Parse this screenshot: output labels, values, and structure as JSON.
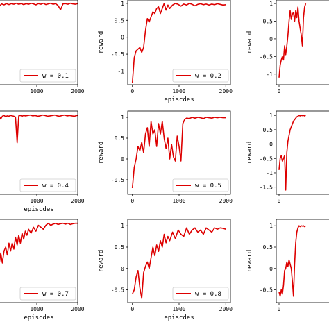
{
  "figure": {
    "line_color": "#dd0000",
    "xlabel": "episcdes",
    "ylabel": "reward"
  },
  "chart_data": [
    {
      "type": "line",
      "legend": "w = 0.1",
      "xlabel": "",
      "ylabel": "",
      "xlim": [
        0,
        2000
      ],
      "ylim": [
        -1.5,
        1.1
      ],
      "xticks": [
        1000,
        2000
      ],
      "yticks": [],
      "x": [
        0,
        40,
        80,
        140,
        200,
        260,
        320,
        380,
        440,
        500,
        560,
        620,
        680,
        740,
        800,
        860,
        920,
        980,
        1040,
        1100,
        1160,
        1220,
        1280,
        1340,
        1400,
        1460,
        1520,
        1580,
        1640,
        1700,
        1760,
        1820,
        1880,
        1940,
        2000
      ],
      "y": [
        0.6,
        0.75,
        0.9,
        0.98,
        0.95,
        0.99,
        0.96,
        0.99,
        0.97,
        1.0,
        0.97,
        0.99,
        0.96,
        0.99,
        0.97,
        1.0,
        0.98,
        0.95,
        0.99,
        0.97,
        1.0,
        0.96,
        0.98,
        1.0,
        0.97,
        0.99,
        0.93,
        0.8,
        0.98,
        0.99,
        0.97,
        1.0,
        0.98,
        0.97,
        0.99
      ]
    },
    {
      "type": "line",
      "legend": "w = 0.2",
      "xlabel": "episcdes",
      "ylabel": "reward",
      "xlim": [
        -100,
        2100
      ],
      "ylim": [
        -1.4,
        1.1
      ],
      "xticks": [
        0,
        1000,
        2000
      ],
      "yticks": [
        -1.0,
        -0.5,
        0.0,
        0.5,
        1.0
      ],
      "x": [
        0,
        40,
        80,
        120,
        160,
        200,
        240,
        280,
        320,
        360,
        400,
        440,
        480,
        520,
        560,
        600,
        640,
        680,
        720,
        760,
        800,
        860,
        920,
        980,
        1040,
        1100,
        1160,
        1220,
        1280,
        1340,
        1400,
        1460,
        1520,
        1580,
        1640,
        1700,
        1760,
        1820,
        1880,
        1940,
        2000
      ],
      "y": [
        -1.35,
        -0.6,
        -0.4,
        -0.35,
        -0.3,
        -0.45,
        -0.3,
        0.2,
        0.55,
        0.45,
        0.6,
        0.75,
        0.7,
        0.85,
        0.9,
        0.7,
        0.85,
        1.0,
        0.8,
        0.95,
        0.85,
        0.95,
        1.0,
        0.97,
        0.92,
        0.98,
        0.95,
        1.0,
        0.97,
        0.93,
        0.97,
        0.99,
        0.96,
        0.98,
        0.95,
        0.98,
        0.96,
        0.99,
        0.97,
        0.95,
        0.96
      ]
    },
    {
      "type": "line",
      "legend": "",
      "xlabel": "",
      "ylabel": "reward",
      "xlim": [
        -100,
        2100
      ],
      "ylim": [
        -1.3,
        1.1
      ],
      "xticks": [
        0
      ],
      "yticks": [
        -1.0,
        -0.5,
        0.0,
        0.5,
        1.0
      ],
      "x": [
        0,
        40,
        80,
        120,
        160,
        200,
        240,
        280,
        320,
        360,
        400,
        440,
        480,
        520,
        560,
        600,
        640,
        680,
        720,
        760,
        800,
        840,
        880,
        920,
        960
      ],
      "y": [
        -1.1,
        -0.75,
        -0.6,
        -0.5,
        -0.6,
        -0.2,
        -0.45,
        -0.2,
        0.1,
        0.5,
        0.8,
        0.55,
        0.7,
        0.75,
        0.5,
        0.8,
        0.6,
        0.9,
        0.5,
        0.3,
        0.1,
        -0.2,
        0.6,
        0.9,
        1.0
      ]
    },
    {
      "type": "line",
      "legend": "w = 0.4",
      "xlabel": "episcdes",
      "ylabel": "",
      "xlim": [
        0,
        2000
      ],
      "ylim": [
        -1.0,
        1.1
      ],
      "xticks": [
        1000,
        2000
      ],
      "yticks": [],
      "x": [
        0,
        40,
        80,
        120,
        160,
        200,
        240,
        280,
        320,
        360,
        400,
        440,
        480,
        520,
        560,
        600,
        640,
        680,
        720,
        780,
        840,
        900,
        960,
        1020,
        1080,
        1140,
        1200,
        1260,
        1320,
        1380,
        1440,
        1500,
        1560,
        1620,
        1680,
        1740,
        1800,
        1860,
        1920,
        1980,
        2000
      ],
      "y": [
        0.95,
        0.8,
        0.98,
        0.9,
        0.97,
        0.99,
        0.96,
        0.98,
        0.97,
        0.99,
        0.98,
        0.97,
        0.95,
        0.3,
        0.98,
        0.99,
        0.97,
        0.99,
        0.98,
        0.99,
        1.0,
        0.98,
        0.99,
        0.97,
        0.98,
        1.0,
        0.99,
        0.97,
        0.98,
        0.99,
        1.0,
        0.98,
        0.97,
        0.99,
        1.0,
        0.98,
        0.99,
        0.98,
        0.97,
        0.99,
        0.99
      ]
    },
    {
      "type": "line",
      "legend": "w = 0.5",
      "xlabel": "",
      "ylabel": "reward",
      "xlim": [
        -100,
        2100
      ],
      "ylim": [
        -0.85,
        1.15
      ],
      "xticks": [
        0,
        1000,
        2000
      ],
      "yticks": [
        -0.5,
        0.0,
        0.5,
        1.0
      ],
      "x": [
        0,
        40,
        80,
        120,
        160,
        200,
        240,
        280,
        320,
        360,
        400,
        440,
        480,
        520,
        560,
        600,
        640,
        680,
        720,
        760,
        800,
        840,
        880,
        920,
        960,
        1000,
        1040,
        1080,
        1120,
        1160,
        1220,
        1280,
        1340,
        1400,
        1460,
        1520,
        1580,
        1640,
        1700,
        1760,
        1820,
        1880,
        1940,
        2000
      ],
      "y": [
        -0.7,
        -0.2,
        0.0,
        0.3,
        0.2,
        0.4,
        0.15,
        0.6,
        0.75,
        0.3,
        0.9,
        0.6,
        0.7,
        0.3,
        0.85,
        0.6,
        0.9,
        0.5,
        0.25,
        0.5,
        0.0,
        0.35,
        0.05,
        -0.05,
        0.55,
        0.3,
        -0.05,
        0.85,
        0.95,
        0.98,
        0.97,
        1.0,
        0.98,
        1.0,
        0.99,
        0.97,
        1.0,
        0.99,
        0.98,
        1.0,
        0.99,
        1.0,
        0.99,
        0.99
      ]
    },
    {
      "type": "line",
      "legend": "",
      "xlabel": "",
      "ylabel": "reward",
      "xlim": [
        -100,
        2100
      ],
      "ylim": [
        -1.75,
        1.15
      ],
      "xticks": [
        0
      ],
      "yticks": [
        -1.5,
        -1.0,
        -0.5,
        0.0,
        0.5,
        1.0
      ],
      "x": [
        0,
        40,
        80,
        120,
        160,
        200,
        240,
        280,
        320,
        360,
        400,
        440,
        480,
        520,
        560,
        600,
        640,
        680,
        720,
        760,
        800,
        840,
        880,
        920,
        960
      ],
      "y": [
        -0.9,
        -0.5,
        -0.4,
        -0.6,
        -0.5,
        -0.4,
        -1.6,
        -0.3,
        0.1,
        0.3,
        0.5,
        0.6,
        0.7,
        0.8,
        0.85,
        0.9,
        0.95,
        0.97,
        1.0,
        0.98,
        1.0,
        0.99,
        1.0,
        0.98,
        1.0
      ]
    },
    {
      "type": "line",
      "legend": "w = 0.7",
      "xlabel": "episcdes",
      "ylabel": "",
      "xlim": [
        0,
        2000
      ],
      "ylim": [
        -1.0,
        1.1
      ],
      "xticks": [
        1000,
        2000
      ],
      "yticks": [],
      "x": [
        0,
        40,
        80,
        120,
        160,
        200,
        240,
        280,
        320,
        360,
        400,
        440,
        480,
        520,
        560,
        600,
        640,
        680,
        720,
        760,
        800,
        860,
        920,
        980,
        1040,
        1100,
        1160,
        1220,
        1280,
        1340,
        1400,
        1460,
        1520,
        1580,
        1640,
        1700,
        1760,
        1820,
        1880,
        1940,
        2000
      ],
      "y": [
        -0.2,
        -0.35,
        -0.05,
        0.25,
        0.0,
        0.3,
        0.4,
        0.2,
        0.5,
        0.3,
        0.5,
        0.35,
        0.65,
        0.45,
        0.7,
        0.5,
        0.75,
        0.6,
        0.8,
        0.7,
        0.85,
        0.75,
        0.9,
        0.8,
        0.95,
        0.9,
        0.85,
        0.95,
        1.0,
        0.95,
        0.98,
        1.0,
        0.97,
        0.99,
        1.0,
        0.98,
        1.0,
        0.97,
        0.99,
        1.0,
        1.0
      ]
    },
    {
      "type": "line",
      "legend": "w = 0.8",
      "xlabel": "episcdes",
      "ylabel": "reward",
      "xlim": [
        -100,
        2100
      ],
      "ylim": [
        -0.8,
        1.15
      ],
      "xticks": [
        0,
        1000,
        2000
      ],
      "yticks": [
        -0.5,
        0.0,
        0.5,
        1.0
      ],
      "x": [
        0,
        40,
        80,
        120,
        160,
        200,
        240,
        280,
        320,
        360,
        400,
        440,
        480,
        520,
        560,
        600,
        640,
        680,
        720,
        760,
        800,
        860,
        920,
        980,
        1040,
        1100,
        1160,
        1220,
        1280,
        1340,
        1400,
        1460,
        1520,
        1580,
        1640,
        1700,
        1760,
        1820,
        1880,
        1940,
        2000
      ],
      "y": [
        -0.6,
        -0.5,
        -0.2,
        -0.05,
        -0.45,
        -0.7,
        -0.1,
        0.05,
        0.15,
        0.0,
        0.25,
        0.5,
        0.3,
        0.55,
        0.4,
        0.65,
        0.5,
        0.8,
        0.6,
        0.75,
        0.65,
        0.85,
        0.7,
        0.9,
        0.8,
        0.75,
        0.95,
        0.8,
        0.9,
        0.95,
        0.85,
        0.9,
        0.8,
        0.95,
        0.9,
        0.85,
        0.95,
        0.92,
        0.95,
        0.94,
        0.92
      ]
    },
    {
      "type": "line",
      "legend": "",
      "xlabel": "",
      "ylabel": "reward",
      "xlim": [
        -100,
        2100
      ],
      "ylim": [
        -0.8,
        1.15
      ],
      "xticks": [
        0
      ],
      "yticks": [
        -0.5,
        0.0,
        0.5,
        1.0
      ],
      "x": [
        0,
        40,
        80,
        120,
        160,
        200,
        240,
        280,
        320,
        360,
        400,
        440,
        480,
        520,
        560,
        600,
        640,
        680,
        720,
        760,
        800,
        840,
        880,
        920,
        960
      ],
      "y": [
        -0.55,
        -0.65,
        -0.5,
        -0.6,
        -0.4,
        -0.05,
        0.0,
        0.15,
        0.05,
        0.2,
        0.1,
        0.0,
        -0.3,
        -0.65,
        0.1,
        0.6,
        0.85,
        0.95,
        1.0,
        0.98,
        1.0,
        0.99,
        1.0,
        0.98,
        1.0
      ]
    }
  ]
}
